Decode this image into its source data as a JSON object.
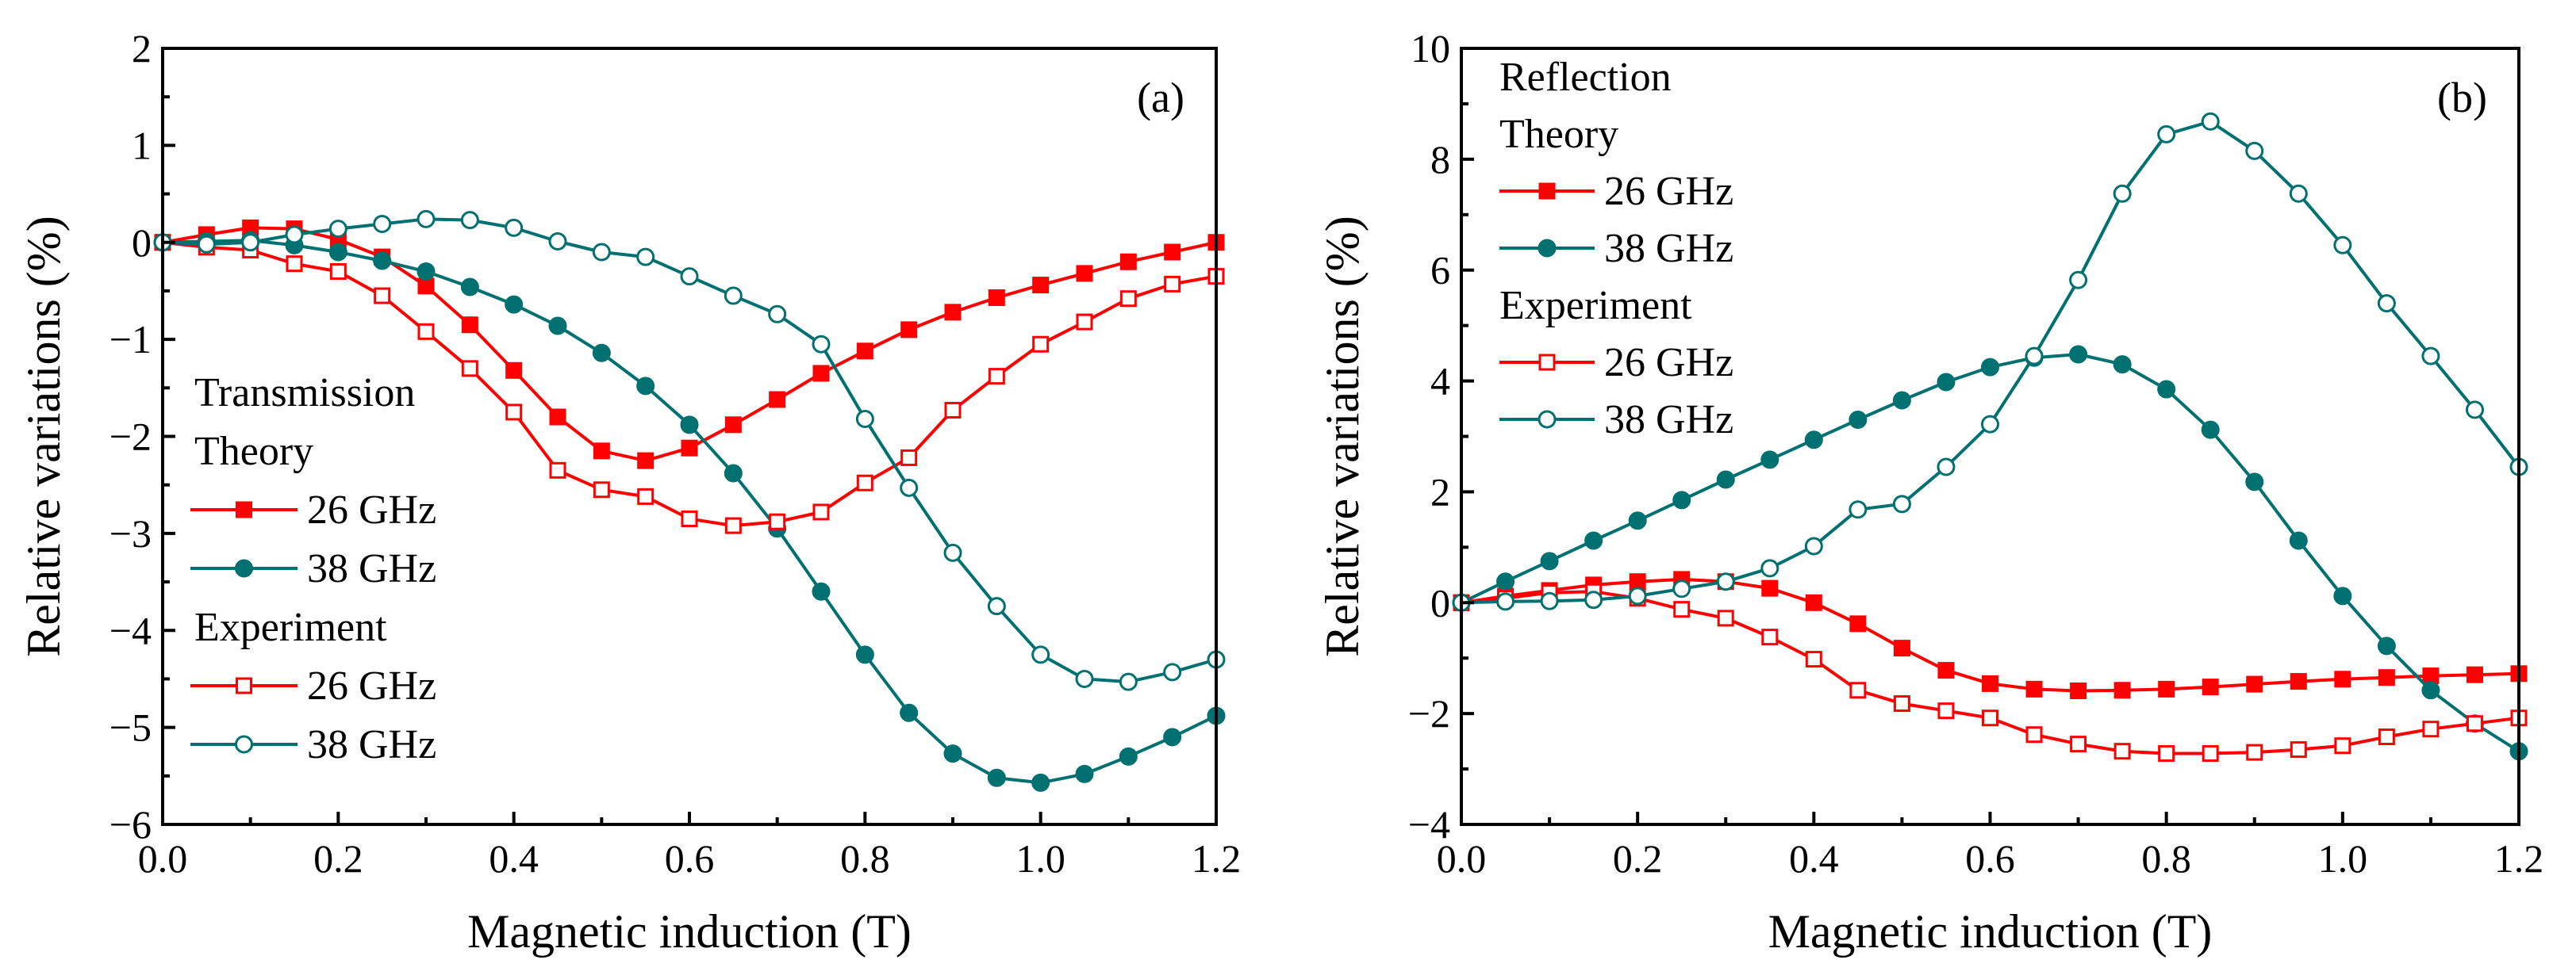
{
  "colors": {
    "red": "#ff0000",
    "teal": "#007070"
  },
  "chart_data": [
    {
      "type": "line",
      "panel_label": "(a)",
      "xlabel": "Magnetic induction (T)",
      "ylabel": "Relative variations (%)",
      "xlim": [
        0.0,
        1.2
      ],
      "ylim": [
        -6,
        2
      ],
      "xticks": [
        0.0,
        0.2,
        0.4,
        0.6,
        0.8,
        1.0,
        1.2
      ],
      "xtick_labels": [
        "0.0",
        "0.2",
        "0.4",
        "0.6",
        "0.8",
        "1.0",
        "1.2"
      ],
      "yticks": [
        -6,
        -5,
        -4,
        -3,
        -2,
        -1,
        0,
        1,
        2
      ],
      "ytick_labels": [
        "−6",
        "−5",
        "−4",
        "−3",
        "−2",
        "−1",
        "0",
        "1",
        "2"
      ],
      "x": [
        0.0,
        0.05,
        0.1,
        0.15,
        0.2,
        0.25,
        0.3,
        0.35,
        0.4,
        0.45,
        0.5,
        0.55,
        0.6,
        0.65,
        0.7,
        0.75,
        0.8,
        0.85,
        0.9,
        0.95,
        1.0,
        1.05,
        1.1,
        1.15,
        1.2
      ],
      "legend": {
        "position": "lower-left",
        "title": "Transmission",
        "groups": [
          {
            "label": "Theory",
            "entries": [
              {
                "label": "26 GHz",
                "series": 0
              },
              {
                "label": "38 GHz",
                "series": 1
              }
            ]
          },
          {
            "label": "Experiment",
            "entries": [
              {
                "label": "26 GHz",
                "series": 2
              },
              {
                "label": "38 GHz",
                "series": 3
              }
            ]
          }
        ]
      },
      "series": [
        {
          "name": "Theory 26 GHz",
          "color": "#ff0000",
          "marker": "square",
          "filled": true,
          "values": [
            0.0,
            0.08,
            0.15,
            0.14,
            0.03,
            -0.15,
            -0.45,
            -0.85,
            -1.32,
            -1.8,
            -2.15,
            -2.25,
            -2.12,
            -1.88,
            -1.62,
            -1.35,
            -1.12,
            -0.9,
            -0.72,
            -0.57,
            -0.44,
            -0.32,
            -0.2,
            -0.1,
            0.0
          ]
        },
        {
          "name": "Theory 38 GHz",
          "color": "#007070",
          "marker": "circle",
          "filled": true,
          "values": [
            0.0,
            0.01,
            0.02,
            -0.03,
            -0.1,
            -0.19,
            -0.3,
            -0.46,
            -0.64,
            -0.86,
            -1.14,
            -1.48,
            -1.88,
            -2.38,
            -2.95,
            -3.6,
            -4.25,
            -4.85,
            -5.27,
            -5.52,
            -5.57,
            -5.48,
            -5.3,
            -5.1,
            -4.88
          ]
        },
        {
          "name": "Experiment 26 GHz",
          "color": "#ff0000",
          "marker": "square",
          "filled": false,
          "values": [
            0.0,
            -0.05,
            -0.08,
            -0.22,
            -0.3,
            -0.55,
            -0.92,
            -1.3,
            -1.75,
            -2.35,
            -2.55,
            -2.62,
            -2.85,
            -2.92,
            -2.88,
            -2.78,
            -2.48,
            -2.22,
            -1.73,
            -1.38,
            -1.05,
            -0.82,
            -0.58,
            -0.43,
            -0.35
          ]
        },
        {
          "name": "Experiment 38 GHz",
          "color": "#007070",
          "marker": "circle",
          "filled": false,
          "values": [
            0.0,
            -0.02,
            0.0,
            0.08,
            0.14,
            0.19,
            0.24,
            0.23,
            0.15,
            0.01,
            -0.1,
            -0.15,
            -0.35,
            -0.55,
            -0.74,
            -1.05,
            -1.82,
            -2.53,
            -3.2,
            -3.75,
            -4.25,
            -4.5,
            -4.53,
            -4.43,
            -4.3
          ]
        }
      ]
    },
    {
      "type": "line",
      "panel_label": "(b)",
      "xlabel": "Magnetic induction (T)",
      "ylabel": "Relative variations (%)",
      "xlim": [
        0.0,
        1.2
      ],
      "ylim": [
        -4,
        10
      ],
      "xticks": [
        0.0,
        0.2,
        0.4,
        0.6,
        0.8,
        1.0,
        1.2
      ],
      "xtick_labels": [
        "0.0",
        "0.2",
        "0.4",
        "0.6",
        "0.8",
        "1.0",
        "1.2"
      ],
      "yticks": [
        -4,
        -2,
        0,
        2,
        4,
        6,
        8,
        10
      ],
      "ytick_labels": [
        "−4",
        "−2",
        "0",
        "2",
        "4",
        "6",
        "8",
        "10"
      ],
      "x": [
        0.0,
        0.05,
        0.1,
        0.15,
        0.2,
        0.25,
        0.3,
        0.35,
        0.4,
        0.45,
        0.5,
        0.55,
        0.6,
        0.65,
        0.7,
        0.75,
        0.8,
        0.85,
        0.9,
        0.95,
        1.0,
        1.05,
        1.1,
        1.15,
        1.2
      ],
      "legend": {
        "position": "upper-left",
        "title": "Reflection",
        "groups": [
          {
            "label": "Theory",
            "entries": [
              {
                "label": "26 GHz",
                "series": 0
              },
              {
                "label": "38 GHz",
                "series": 1
              }
            ]
          },
          {
            "label": "Experiment",
            "entries": [
              {
                "label": "26 GHz",
                "series": 2
              },
              {
                "label": "38 GHz",
                "series": 3
              }
            ]
          }
        ]
      },
      "series": [
        {
          "name": "Theory 26 GHz",
          "color": "#ff0000",
          "marker": "square",
          "filled": true,
          "values": [
            0.0,
            0.12,
            0.22,
            0.32,
            0.38,
            0.42,
            0.38,
            0.26,
            0.0,
            -0.38,
            -0.82,
            -1.22,
            -1.46,
            -1.56,
            -1.59,
            -1.58,
            -1.56,
            -1.52,
            -1.47,
            -1.42,
            -1.38,
            -1.35,
            -1.32,
            -1.3,
            -1.28
          ]
        },
        {
          "name": "Theory 38 GHz",
          "color": "#007070",
          "marker": "circle",
          "filled": true,
          "values": [
            0.0,
            0.38,
            0.75,
            1.12,
            1.48,
            1.85,
            2.22,
            2.58,
            2.94,
            3.3,
            3.65,
            3.98,
            4.25,
            4.42,
            4.48,
            4.3,
            3.85,
            3.12,
            2.18,
            1.12,
            0.12,
            -0.78,
            -1.58,
            -2.18,
            -2.68
          ]
        },
        {
          "name": "Experiment 26 GHz",
          "color": "#ff0000",
          "marker": "square",
          "filled": false,
          "values": [
            0.0,
            0.08,
            0.18,
            0.2,
            0.08,
            -0.12,
            -0.28,
            -0.62,
            -1.02,
            -1.58,
            -1.82,
            -1.95,
            -2.08,
            -2.38,
            -2.55,
            -2.68,
            -2.72,
            -2.72,
            -2.7,
            -2.65,
            -2.58,
            -2.42,
            -2.28,
            -2.18,
            -2.08
          ]
        },
        {
          "name": "Experiment 38 GHz",
          "color": "#007070",
          "marker": "circle",
          "filled": false,
          "values": [
            0.0,
            0.02,
            0.03,
            0.05,
            0.12,
            0.25,
            0.38,
            0.62,
            1.02,
            1.68,
            1.78,
            2.45,
            3.22,
            4.45,
            5.82,
            7.38,
            8.45,
            8.68,
            8.15,
            7.38,
            6.45,
            5.4,
            4.45,
            3.48,
            2.45
          ]
        }
      ]
    }
  ]
}
